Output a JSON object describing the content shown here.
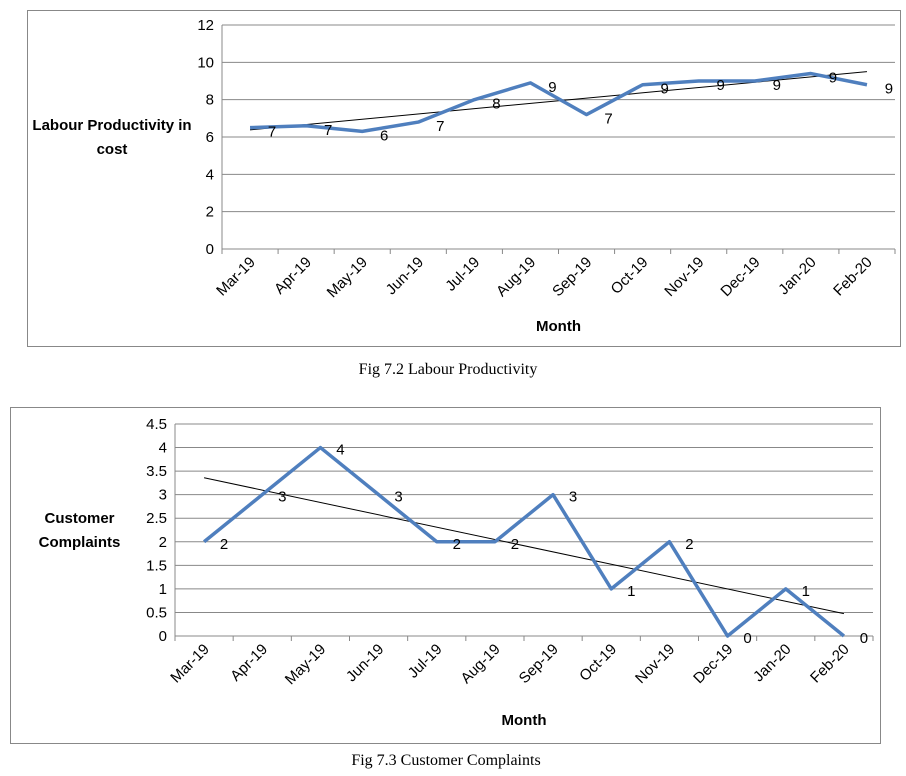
{
  "chart_data": [
    {
      "type": "line",
      "x_label": "Month",
      "y_label": "Labour Productivity in cost",
      "caption": "Fig 7.2 Labour Productivity",
      "categories": [
        "Mar-19",
        "Apr-19",
        "May-19",
        "Jun-19",
        "Jul-19",
        "Aug-19",
        "Sep-19",
        "Oct-19",
        "Nov-19",
        "Dec-19",
        "Jan-20",
        "Feb-20"
      ],
      "series": [
        {
          "color": "#4f7fbe",
          "values": [
            6.5,
            6.6,
            6.3,
            6.8,
            8.0,
            8.9,
            7.2,
            8.8,
            9.0,
            9.0,
            9.4,
            8.8
          ],
          "value_labels": [
            "7",
            "7",
            "6",
            "7",
            "8",
            "9",
            "7",
            "9",
            "9",
            "9",
            "9",
            "9"
          ]
        }
      ],
      "ylim": [
        0,
        12
      ],
      "yticks": [
        0,
        2,
        4,
        6,
        8,
        10,
        12
      ],
      "grid": true,
      "trendline": true
    },
    {
      "type": "line",
      "x_label": "Month",
      "y_label": "Customer Complaints",
      "caption": "Fig 7.3 Customer Complaints",
      "categories": [
        "Mar-19",
        "Apr-19",
        "May-19",
        "Jun-19",
        "Jul-19",
        "Aug-19",
        "Sep-19",
        "Oct-19",
        "Nov-19",
        "Dec-19",
        "Jan-20",
        "Feb-20"
      ],
      "series": [
        {
          "color": "#4f7fbe",
          "values": [
            2,
            3,
            4,
            3,
            2,
            2,
            3,
            1,
            2,
            0,
            1,
            0
          ]
        }
      ],
      "ylim": [
        0,
        4.5
      ],
      "yticks": [
        0,
        0.5,
        1,
        1.5,
        2,
        2.5,
        3,
        3.5,
        4,
        4.5
      ],
      "grid": true,
      "trendline": true
    }
  ]
}
